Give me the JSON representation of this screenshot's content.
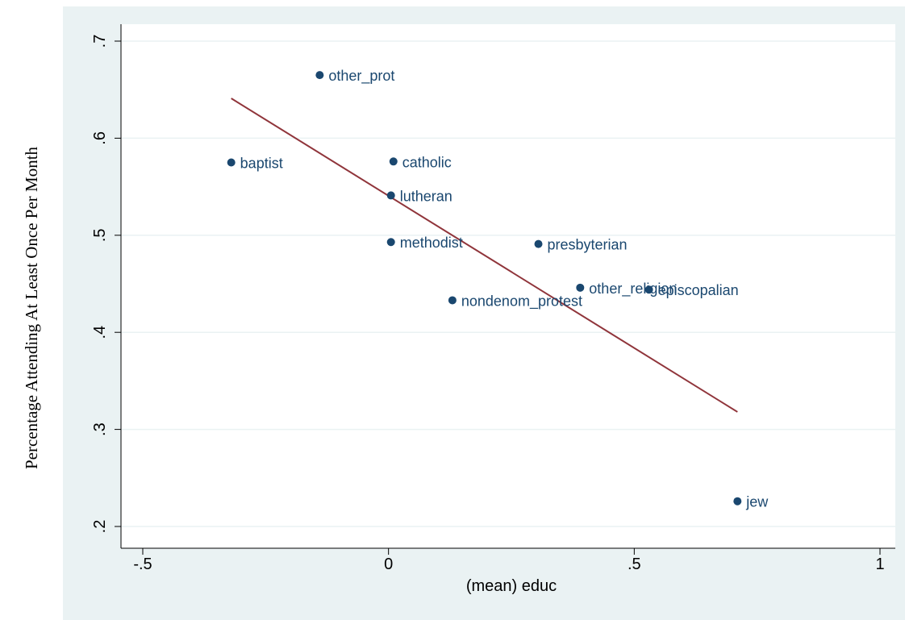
{
  "chart_data": {
    "type": "scatter",
    "xlabel": "(mean) educ",
    "ylabel": "Percentage Attending At Least Once Per Month",
    "xlim": [
      -0.52,
      1.05
    ],
    "ylim": [
      0.195,
      0.725
    ],
    "xticks": [
      {
        "value": -0.5,
        "label": "-.5"
      },
      {
        "value": 0,
        "label": "0"
      },
      {
        "value": 0.5,
        "label": ".5"
      },
      {
        "value": 1,
        "label": "1"
      }
    ],
    "yticks": [
      {
        "value": 0.2,
        "label": ".2"
      },
      {
        "value": 0.3,
        "label": ".3"
      },
      {
        "value": 0.4,
        "label": ".4"
      },
      {
        "value": 0.5,
        "label": ".5"
      },
      {
        "value": 0.6,
        "label": ".6"
      },
      {
        "value": 0.7,
        "label": ".7"
      }
    ],
    "grid": "horizontal",
    "points": [
      {
        "label": "other_prot",
        "x": -0.14,
        "y": 0.665
      },
      {
        "label": "baptist",
        "x": -0.32,
        "y": 0.575
      },
      {
        "label": "catholic",
        "x": 0.01,
        "y": 0.576
      },
      {
        "label": "lutheran",
        "x": 0.005,
        "y": 0.541
      },
      {
        "label": "methodist",
        "x": 0.005,
        "y": 0.493
      },
      {
        "label": "presbyterian",
        "x": 0.305,
        "y": 0.491
      },
      {
        "label": "nondenom_protest",
        "x": 0.13,
        "y": 0.433
      },
      {
        "label": "other_religion",
        "x": 0.39,
        "y": 0.446
      },
      {
        "label": "episcopalian",
        "x": 0.53,
        "y": 0.444
      },
      {
        "label": "jew",
        "x": 0.71,
        "y": 0.226
      }
    ],
    "fit_line": {
      "x1": -0.32,
      "y1": 0.641,
      "x2": 0.71,
      "y2": 0.318
    },
    "colors": {
      "outer_background": "#ffffff",
      "plot_region": "#eaf2f3",
      "plot_area": "#ffffff",
      "grid": "#eaf2f3",
      "marker": "#1a476f",
      "marker_label": "#1a476f",
      "fit_line": "#90353b",
      "axis": "#000000",
      "text": "#000000"
    }
  }
}
